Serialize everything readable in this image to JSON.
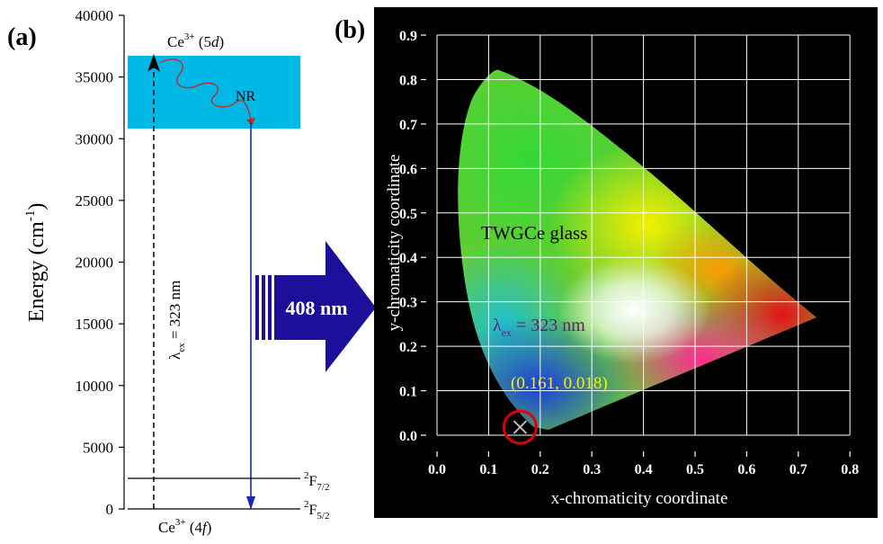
{
  "panel_a": {
    "label": "(a)",
    "y_axis": {
      "label": "Energy (cm",
      "label_sup": "-1",
      "label_close": ")",
      "ticks": [
        "0",
        "5000",
        "10000",
        "15000",
        "20000",
        "25000",
        "30000",
        "35000",
        "40000"
      ]
    },
    "band_top_label": {
      "base": "Ce",
      "sup": "3+",
      "state": " (5",
      "orbital": "d",
      "close": ")"
    },
    "band_bottom_label": {
      "base": "Ce",
      "sup": "3+",
      "state": " (4",
      "orbital": "f",
      "close": ")"
    },
    "nr_label": "NR",
    "excitation_label": {
      "lambda": "λ",
      "sub": "ex",
      "value": " = 323 nm"
    },
    "levels": [
      {
        "sup": "2",
        "main": "F",
        "sub": "7/2"
      },
      {
        "sup": "2",
        "main": "F",
        "sub": "5/2"
      }
    ],
    "colors": {
      "band": "#00b8e6",
      "emission": "#1a28b4",
      "nr_arrow": "#cc2222"
    }
  },
  "arrow": {
    "label": "408 nm",
    "color": "#1c0f9a"
  },
  "panel_b": {
    "label": "(b)",
    "x_axis": {
      "label": "x-chromaticity coordinate",
      "ticks": [
        "0.0",
        "0.1",
        "0.2",
        "0.3",
        "0.4",
        "0.5",
        "0.6",
        "0.7",
        "0.8"
      ]
    },
    "y_axis": {
      "label": "y-chromaticity coordinate",
      "ticks": [
        "0.0",
        "0.1",
        "0.2",
        "0.3",
        "0.4",
        "0.5",
        "0.6",
        "0.7",
        "0.8",
        "0.9"
      ]
    },
    "glass_label": "TWGCe glass",
    "excitation_label": {
      "lambda": "λ",
      "sub": "ex",
      "value": " = 323 nm"
    },
    "point_label": "(0.161, 0.018)",
    "point": {
      "x": 0.161,
      "y": 0.018
    },
    "colors": {
      "background": "#000000",
      "point_label": "#ffee00",
      "excitation_label": "#6a1b6a",
      "marker_circle": "#e00000"
    }
  }
}
